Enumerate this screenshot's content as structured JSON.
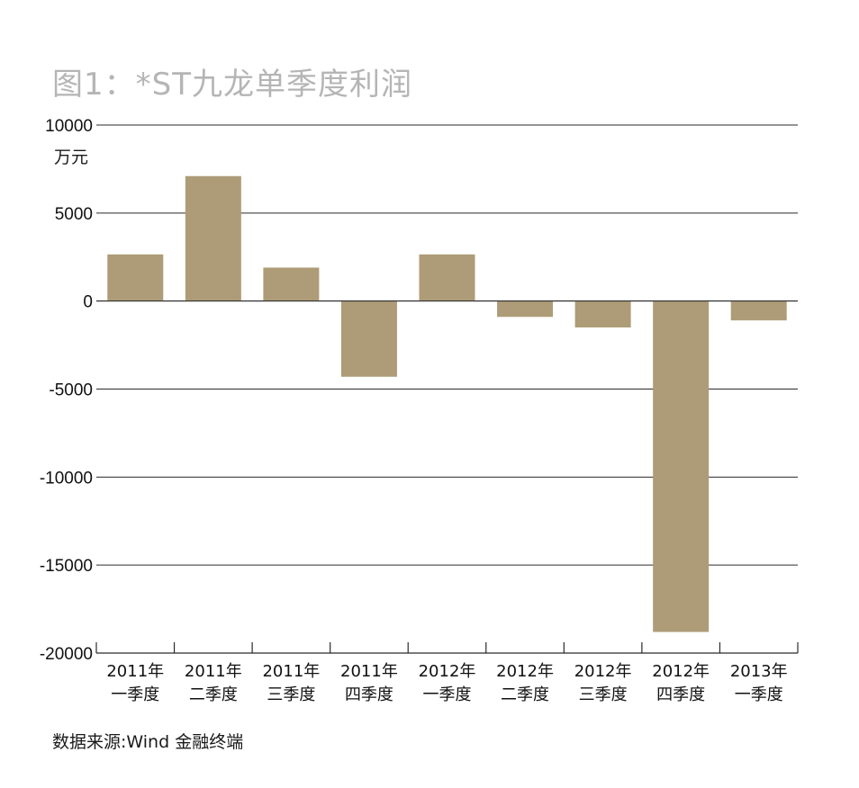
{
  "chart_data": {
    "type": "bar",
    "title": "图1：*ST九龙单季度利润",
    "ylabel": "万元",
    "ylim": [
      -20000,
      10000
    ],
    "yticks": [
      10000,
      5000,
      0,
      -5000,
      -10000,
      -15000,
      -20000
    ],
    "grid": true,
    "legend": "none",
    "bar_color": "#ad9c77",
    "categories": [
      {
        "year": "2011年",
        "quarter": "一季度"
      },
      {
        "year": "2011年",
        "quarter": "二季度"
      },
      {
        "year": "2011年",
        "quarter": "三季度"
      },
      {
        "year": "2011年",
        "quarter": "四季度"
      },
      {
        "year": "2012年",
        "quarter": "一季度"
      },
      {
        "year": "2012年",
        "quarter": "二季度"
      },
      {
        "year": "2012年",
        "quarter": "三季度"
      },
      {
        "year": "2012年",
        "quarter": "四季度"
      },
      {
        "year": "2013年",
        "quarter": "一季度"
      }
    ],
    "values": [
      2650,
      7100,
      1900,
      -4300,
      2650,
      -900,
      -1500,
      -18800,
      -1100
    ],
    "source": "数据来源:Wind 金融终端"
  }
}
